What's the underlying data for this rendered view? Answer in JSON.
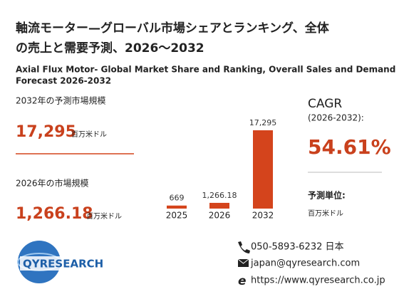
{
  "title_ja": [
    "軸流モーター—グローバル市場シェアとランキング、全体",
    "の売上と需要予測、2026～2032"
  ],
  "title_en": [
    "Axial Flux Motor- Global Market Share and Ranking, Overall Sales and Demand",
    "Forecast 2026-2032"
  ],
  "stats": [
    {
      "label": "2032年の予測市場規模",
      "value": "17,295",
      "unit": "百万米ドル"
    },
    {
      "label": "2026年の市場規模",
      "value": "1,266.18",
      "unit": "百万米ドル"
    }
  ],
  "cagr": {
    "label": "CAGR",
    "period": "(2026-2032):",
    "value": "54.61%"
  },
  "forecast_unit": {
    "label": "予測単位:",
    "value": "百万米ドル"
  },
  "logo": "QYRESEARCH",
  "contact": [
    "050-5893-6232 日本",
    "japan@qyresearch.com",
    "https://www.qyresearch.co.jp"
  ],
  "chart_data": {
    "type": "bar",
    "categories": [
      "2025",
      "2026",
      "2032"
    ],
    "values": [
      669,
      1266.18,
      17295
    ],
    "value_labels": [
      "669",
      "1,266.18",
      "17,295"
    ],
    "color": "#d4441c"
  }
}
